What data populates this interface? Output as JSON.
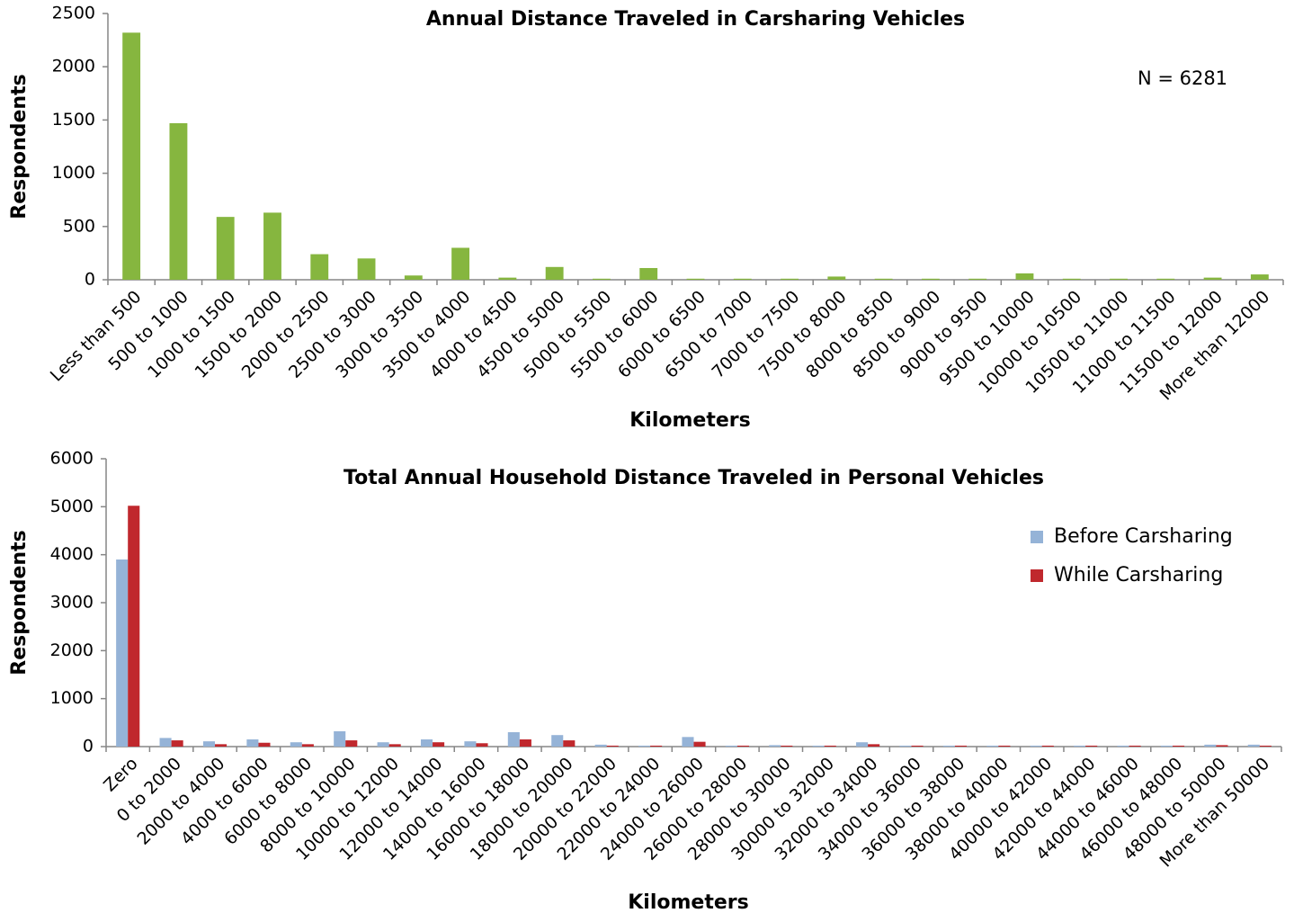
{
  "chart_data": [
    {
      "type": "bar",
      "title": "Annual Distance Traveled in Carsharing Vehicles",
      "xlabel": "Kilometers",
      "ylabel": "Respondents",
      "annotation": "N = 6281",
      "categories": [
        "Less than 500",
        "500 to 1000",
        "1000 to 1500",
        "1500 to 2000",
        "2000 to 2500",
        "2500 to 3000",
        "3000 to 3500",
        "3500 to 4000",
        "4000 to 4500",
        "4500 to 5000",
        "5000 to 5500",
        "5500 to 6000",
        "6000 to 6500",
        "6500 to 7000",
        "7000 to 7500",
        "7500 to 8000",
        "8000 to 8500",
        "8500 to 9000",
        "9000 to 9500",
        "9500 to 10000",
        "10000 to 10500",
        "10500 to 11000",
        "11000 to 11500",
        "11500 to 12000",
        "More than 12000"
      ],
      "values": [
        2320,
        1470,
        590,
        630,
        240,
        200,
        40,
        300,
        20,
        120,
        10,
        110,
        10,
        10,
        10,
        30,
        10,
        10,
        10,
        60,
        10,
        10,
        10,
        20,
        50
      ],
      "color": "#86b63f",
      "ylim": [
        0,
        2500
      ],
      "yticks": [
        0,
        500,
        1000,
        1500,
        2000,
        2500
      ]
    },
    {
      "type": "bar",
      "title": "Total Annual Household Distance Traveled in Personal Vehicles",
      "xlabel": "Kilometers",
      "ylabel": "Respondents",
      "categories": [
        "Zero",
        "0 to 2000",
        "2000 to 4000",
        "4000 to 6000",
        "6000 to 8000",
        "8000 to 10000",
        "10000 to 12000",
        "12000 to 14000",
        "14000 to 16000",
        "16000 to 18000",
        "18000 to 20000",
        "20000 to 22000",
        "22000 to 24000",
        "24000 to 26000",
        "26000 to 28000",
        "28000 to 30000",
        "30000 to 32000",
        "32000 to 34000",
        "34000 to 36000",
        "36000 to 38000",
        "38000 to 40000",
        "40000 to 42000",
        "42000 to 44000",
        "44000 to 46000",
        "46000 to 48000",
        "48000 to 50000",
        "More than 50000"
      ],
      "series": [
        {
          "name": "Before Carsharing",
          "color": "#95b3d7",
          "values": [
            3900,
            180,
            110,
            150,
            90,
            320,
            90,
            150,
            110,
            300,
            240,
            40,
            20,
            200,
            20,
            30,
            20,
            90,
            20,
            20,
            20,
            20,
            20,
            20,
            20,
            40,
            40
          ]
        },
        {
          "name": "While Carsharing",
          "color": "#c0282d",
          "values": [
            5020,
            130,
            50,
            80,
            50,
            130,
            50,
            90,
            70,
            150,
            130,
            20,
            20,
            100,
            20,
            20,
            20,
            50,
            20,
            20,
            20,
            20,
            20,
            20,
            20,
            30,
            20
          ]
        }
      ],
      "ylim": [
        0,
        6000
      ],
      "yticks": [
        0,
        1000,
        2000,
        3000,
        4000,
        5000,
        6000
      ]
    }
  ]
}
